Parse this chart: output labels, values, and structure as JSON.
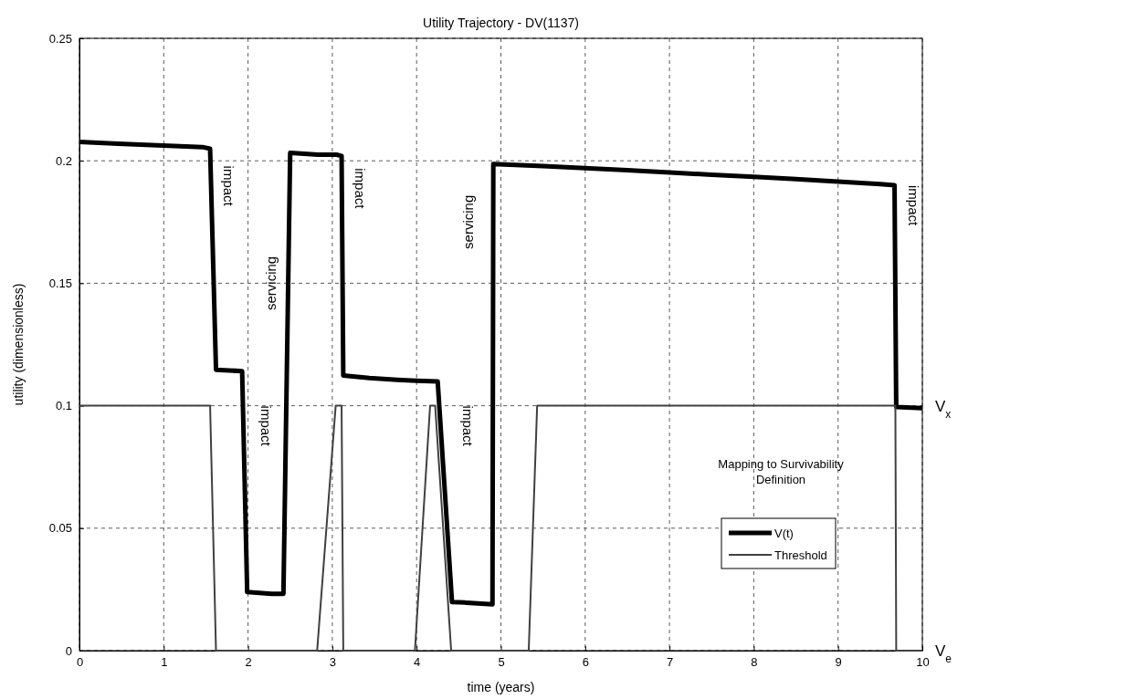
{
  "chart_data": {
    "type": "line",
    "title": "Utility Trajectory - DV(1137)",
    "xlabel": "time (years)",
    "ylabel": "utility (dimensionless)",
    "xlim": [
      0,
      10
    ],
    "ylim": [
      0,
      0.25
    ],
    "xticks": [
      0,
      1,
      2,
      3,
      4,
      5,
      6,
      7,
      8,
      9,
      10
    ],
    "yticks": [
      0,
      0.05,
      0.1,
      0.15,
      0.2,
      0.25
    ],
    "grid": true,
    "legend": "bottom right",
    "legend_title": "Mapping to Survivability Definition",
    "line_style": "solid",
    "series": [
      {
        "name": "V(t)",
        "color": "#000000",
        "x": [
          0,
          0.46,
          1.46,
          1.55,
          1.62,
          1.93,
          1.99,
          2.28,
          2.42,
          2.5,
          2.83,
          3.05,
          3.11,
          3.13,
          3.44,
          3.77,
          4.0,
          4.25,
          4.42,
          4.59,
          4.9,
          4.91,
          5.5,
          6,
          6.5,
          7,
          7.5,
          8,
          8.5,
          9,
          9.5,
          9.67,
          9.69,
          10
        ],
        "values": [
          0.2077,
          0.207,
          0.2056,
          0.2049,
          0.1147,
          0.1141,
          0.0239,
          0.0232,
          0.0232,
          0.2032,
          0.2025,
          0.2025,
          0.202,
          0.1123,
          0.1113,
          0.1106,
          0.1102,
          0.1099,
          0.0198,
          0.0196,
          0.0189,
          0.1987,
          0.1978,
          0.197,
          0.1962,
          0.1952,
          0.1943,
          0.1935,
          0.1925,
          0.1915,
          0.1905,
          0.19,
          0.0995,
          0.099
        ]
      },
      {
        "name": "Threshold",
        "color": "#404040",
        "x": [
          0,
          1.55,
          1.62,
          2.82,
          3.04,
          3.11,
          3.13,
          3.98,
          4.16,
          4.22,
          4.41,
          5.33,
          5.43,
          9.68,
          9.69,
          10
        ],
        "values": [
          0.1,
          0.1,
          0,
          0,
          0.1,
          0.1,
          0,
          0,
          0.1,
          0.1,
          0,
          0,
          0.1,
          0.1,
          0,
          0
        ]
      }
    ],
    "annotations": [
      "impact",
      "impact",
      "servicing",
      "impact",
      "impact",
      "servicing",
      "impact",
      "V$_{x}$",
      "V$_{e}$"
    ]
  }
}
